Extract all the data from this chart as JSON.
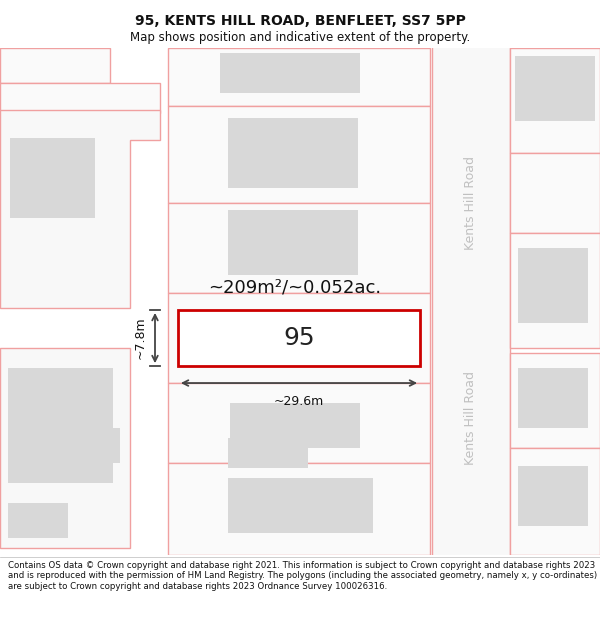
{
  "title": "95, KENTS HILL ROAD, BENFLEET, SS7 5PP",
  "subtitle": "Map shows position and indicative extent of the property.",
  "footer": "Contains OS data © Crown copyright and database right 2021. This information is subject to Crown copyright and database rights 2023 and is reproduced with the permission of HM Land Registry. The polygons (including the associated geometry, namely x, y co-ordinates) are subject to Crown copyright and database rights 2023 Ordnance Survey 100026316.",
  "road_label_top": "Kents Hill Road",
  "road_label_bottom": "Kents Hill Road",
  "area_label": "~209m²/~0.052ac.",
  "width_label": "~29.6m",
  "height_label": "~7.8m",
  "property_number": "95",
  "bg_color": "#ffffff",
  "plot_outline_color": "#f0a0a0",
  "highlight_color": "#cc0000",
  "building_fill": "#d8d8d8",
  "road_line_color": "#f0a0a0",
  "dim_line_color": "#444444",
  "title_fontsize": 10,
  "subtitle_fontsize": 8.5,
  "footer_fontsize": 6.2,
  "area_fontsize": 13,
  "prop_num_fontsize": 18,
  "dim_fontsize": 9,
  "road_label_fontsize": 9,
  "road_label_color": "#c0c0c0"
}
